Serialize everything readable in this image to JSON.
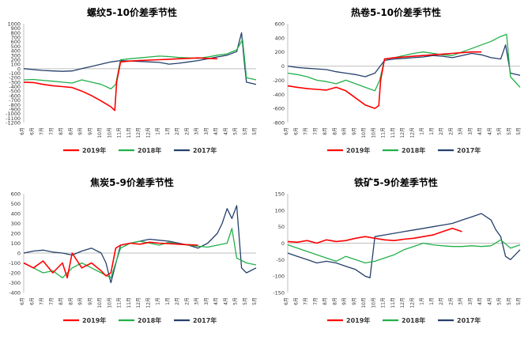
{
  "chart_data": [
    {
      "type": "line",
      "title": "螺纹5-10价差季节性",
      "ylim": [
        -1200,
        1000
      ],
      "yticks": [
        -1200,
        -1100,
        -1000,
        -900,
        -800,
        -700,
        -600,
        -500,
        -400,
        -300,
        -200,
        -100,
        0,
        100,
        200,
        300,
        400,
        500,
        600,
        700,
        800,
        900,
        1000
      ],
      "x_tick_labels": [
        "6月",
        "6月",
        "7月",
        "7月",
        "8月",
        "8月",
        "9月",
        "9月",
        "10月",
        "10月",
        "11月",
        "11月",
        "12月",
        "12月",
        "1月",
        "1月",
        "2月",
        "2月",
        "3月",
        "3月",
        "4月",
        "4月",
        "5月",
        "5月",
        "5月"
      ],
      "x_range": [
        0,
        24
      ],
      "grid": false,
      "legend_position": "bottom",
      "series": [
        {
          "name": "2019年",
          "color": "#ff0000",
          "x": [
            0,
            1,
            2,
            3,
            4,
            5,
            6,
            7,
            8,
            9,
            9.4,
            9.6,
            10,
            11,
            12,
            13,
            14,
            15,
            16,
            17,
            18,
            19,
            20
          ],
          "values": [
            -300,
            -310,
            -350,
            -380,
            -400,
            -420,
            -500,
            -600,
            -720,
            -850,
            -930,
            -300,
            150,
            170,
            180,
            190,
            200,
            210,
            220,
            230,
            240,
            230,
            220
          ]
        },
        {
          "name": "2018年",
          "color": "#22b04a",
          "x": [
            0,
            1,
            2,
            3,
            4,
            5,
            6,
            7,
            8,
            9,
            9.5,
            10,
            11,
            12,
            13,
            14,
            15,
            16,
            17,
            18,
            19,
            20,
            21,
            22,
            22.6,
            23,
            24
          ],
          "values": [
            -250,
            -240,
            -260,
            -280,
            -300,
            -320,
            -250,
            -300,
            -350,
            -450,
            -350,
            200,
            220,
            240,
            260,
            280,
            270,
            250,
            240,
            230,
            260,
            300,
            330,
            420,
            650,
            -200,
            -250
          ]
        },
        {
          "name": "2017年",
          "color": "#243f6b",
          "x": [
            0,
            1,
            2,
            3,
            4,
            5,
            6,
            7,
            8,
            9,
            10,
            11,
            12,
            13,
            14,
            15,
            16,
            17,
            18,
            19,
            20,
            21,
            22,
            22.5,
            22.8,
            23,
            24
          ],
          "values": [
            0,
            -20,
            -40,
            -50,
            -60,
            -50,
            0,
            50,
            100,
            150,
            180,
            170,
            160,
            150,
            140,
            100,
            120,
            150,
            180,
            220,
            260,
            300,
            380,
            800,
            100,
            -300,
            -350
          ]
        }
      ]
    },
    {
      "type": "line",
      "title": "热卷5-10价差季节性",
      "ylim": [
        -800,
        600
      ],
      "yticks": [
        -800,
        -600,
        -400,
        -200,
        0,
        200,
        400,
        600
      ],
      "x_tick_labels": [
        "6月",
        "6月",
        "7月",
        "7月",
        "8月",
        "8月",
        "9月",
        "9月",
        "10月",
        "10月",
        "11月",
        "11月",
        "12月",
        "12月",
        "1月",
        "1月",
        "2月",
        "2月",
        "3月",
        "3月",
        "4月",
        "4月",
        "5月",
        "5月",
        "5月"
      ],
      "x_range": [
        0,
        24
      ],
      "grid": false,
      "legend_position": "bottom",
      "series": [
        {
          "name": "2019年",
          "color": "#ff0000",
          "x": [
            0,
            1,
            2,
            3,
            4,
            5,
            6,
            7,
            8,
            9,
            9.4,
            9.6,
            10,
            11,
            12,
            13,
            14,
            15,
            16,
            17,
            18,
            19,
            20
          ],
          "values": [
            -280,
            -300,
            -320,
            -330,
            -340,
            -300,
            -350,
            -450,
            -550,
            -600,
            -560,
            -200,
            100,
            120,
            130,
            140,
            150,
            160,
            170,
            180,
            190,
            200,
            200
          ]
        },
        {
          "name": "2018年",
          "color": "#22b04a",
          "x": [
            0,
            1,
            2,
            3,
            4,
            5,
            6,
            7,
            8,
            9,
            9.5,
            10,
            11,
            12,
            13,
            14,
            15,
            16,
            17,
            18,
            19,
            20,
            21,
            22,
            22.6,
            23,
            24
          ],
          "values": [
            -100,
            -120,
            -150,
            -200,
            -220,
            -250,
            -200,
            -250,
            -300,
            -350,
            -200,
            100,
            120,
            150,
            180,
            200,
            180,
            160,
            150,
            200,
            250,
            300,
            350,
            420,
            450,
            -150,
            -300
          ]
        },
        {
          "name": "2017年",
          "color": "#243f6b",
          "x": [
            0,
            1,
            2,
            3,
            4,
            5,
            6,
            7,
            8,
            9,
            10,
            11,
            12,
            13,
            14,
            15,
            16,
            17,
            18,
            19,
            20,
            21,
            22,
            22.5,
            23,
            24
          ],
          "values": [
            0,
            -20,
            -30,
            -40,
            -50,
            -80,
            -100,
            -120,
            -150,
            -100,
            80,
            100,
            110,
            120,
            130,
            150,
            140,
            120,
            150,
            180,
            160,
            120,
            100,
            300,
            -100,
            -130
          ]
        }
      ]
    },
    {
      "type": "line",
      "title": "焦炭5-9价差季节性",
      "ylim": [
        -400,
        600
      ],
      "yticks": [
        -400,
        -300,
        -200,
        -100,
        0,
        100,
        200,
        300,
        400,
        500,
        600
      ],
      "x_tick_labels": [
        "6月",
        "6月",
        "7月",
        "7月",
        "8月",
        "8月",
        "9月",
        "9月",
        "10月",
        "10月",
        "11月",
        "11月",
        "12月",
        "12月",
        "1月",
        "1月",
        "2月",
        "2月",
        "3月",
        "3月",
        "4月",
        "4月",
        "5月",
        "5月",
        "5月"
      ],
      "x_range": [
        0,
        24
      ],
      "grid": false,
      "legend_position": "bottom",
      "series": [
        {
          "name": "2019年",
          "color": "#ff0000",
          "x": [
            0,
            1,
            2,
            3,
            4,
            4.5,
            5,
            6,
            7,
            8,
            8.5,
            9,
            9.5,
            10,
            11,
            12,
            13,
            14,
            15,
            16,
            17,
            18
          ],
          "values": [
            -100,
            -150,
            -80,
            -200,
            -100,
            -250,
            0,
            -150,
            -100,
            -180,
            -230,
            -200,
            50,
            80,
            100,
            90,
            110,
            100,
            95,
            90,
            85,
            80
          ]
        },
        {
          "name": "2018年",
          "color": "#22b04a",
          "x": [
            0,
            1,
            2,
            3,
            4,
            5,
            6,
            7,
            8,
            9,
            10,
            11,
            12,
            13,
            14,
            15,
            16,
            17,
            18,
            19,
            20,
            21,
            21.5,
            22,
            23,
            24
          ],
          "values": [
            -100,
            -150,
            -200,
            -180,
            -250,
            -150,
            -100,
            -150,
            -200,
            -250,
            50,
            100,
            120,
            100,
            80,
            110,
            90,
            80,
            70,
            60,
            80,
            100,
            250,
            -50,
            -100,
            -120
          ]
        },
        {
          "name": "2017年",
          "color": "#243f6b",
          "x": [
            0,
            1,
            2,
            3,
            4,
            5,
            6,
            7,
            8,
            8.5,
            9,
            10,
            11,
            12,
            13,
            14,
            15,
            16,
            17,
            18,
            19,
            20,
            20.5,
            21,
            21.5,
            22,
            22.5,
            23,
            24
          ],
          "values": [
            0,
            20,
            30,
            10,
            0,
            -20,
            20,
            50,
            0,
            -100,
            -300,
            80,
            100,
            120,
            140,
            130,
            120,
            100,
            80,
            50,
            100,
            200,
            300,
            450,
            350,
            480,
            -150,
            -200,
            -150
          ]
        }
      ]
    },
    {
      "type": "line",
      "title": "铁矿5-9价差季节性",
      "ylim": [
        -150,
        150
      ],
      "yticks": [
        -150,
        -100,
        -50,
        0,
        50,
        100,
        150
      ],
      "x_tick_labels": [
        "6月",
        "6月",
        "7月",
        "7月",
        "8月",
        "8月",
        "9月",
        "9月",
        "10月",
        "10月",
        "11月",
        "11月",
        "12月",
        "12月",
        "1月",
        "1月",
        "2月",
        "2月",
        "3月",
        "3月",
        "4月",
        "4月",
        "5月",
        "5月",
        "5月"
      ],
      "x_range": [
        0,
        24
      ],
      "grid": false,
      "legend_position": "bottom",
      "series": [
        {
          "name": "2019年",
          "color": "#ff0000",
          "x": [
            0,
            1,
            2,
            3,
            4,
            5,
            6,
            7,
            8,
            9,
            10,
            11,
            12,
            13,
            14,
            15,
            16,
            17,
            18
          ],
          "values": [
            5,
            3,
            8,
            0,
            10,
            5,
            8,
            15,
            20,
            15,
            10,
            8,
            12,
            15,
            20,
            25,
            35,
            45,
            35
          ]
        },
        {
          "name": "2018年",
          "color": "#22b04a",
          "x": [
            0,
            1,
            2,
            3,
            4,
            5,
            6,
            7,
            8,
            9,
            10,
            11,
            12,
            13,
            14,
            15,
            16,
            17,
            18,
            19,
            20,
            21,
            22,
            23,
            24
          ],
          "values": [
            -5,
            -15,
            -25,
            -35,
            -45,
            -55,
            -40,
            -50,
            -60,
            -55,
            -45,
            -35,
            -20,
            -10,
            0,
            -5,
            -8,
            -10,
            -10,
            -8,
            -10,
            -8,
            10,
            -15,
            -5
          ]
        },
        {
          "name": "2017年",
          "color": "#243f6b",
          "x": [
            0,
            1,
            2,
            3,
            4,
            5,
            6,
            7,
            8,
            8.5,
            9,
            10,
            11,
            12,
            13,
            14,
            15,
            16,
            17,
            18,
            19,
            20,
            21,
            21.5,
            22,
            22.5,
            23,
            24
          ],
          "values": [
            -30,
            -40,
            -50,
            -60,
            -55,
            -60,
            -70,
            -80,
            -100,
            -105,
            20,
            25,
            30,
            35,
            40,
            45,
            50,
            55,
            60,
            70,
            80,
            90,
            70,
            40,
            20,
            -40,
            -50,
            -20
          ]
        }
      ]
    }
  ]
}
